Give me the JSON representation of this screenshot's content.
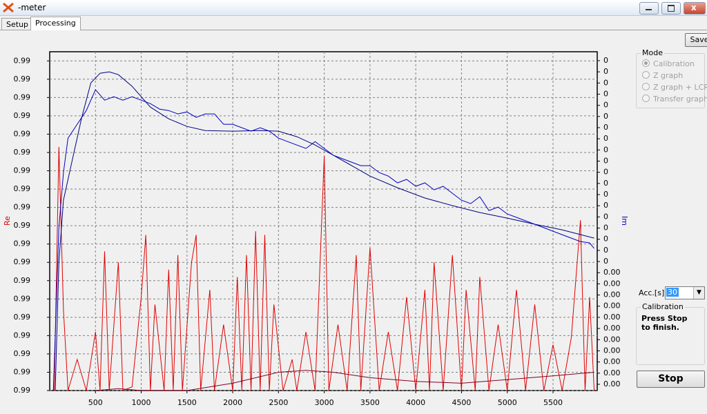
{
  "window": {
    "title": "-meter"
  },
  "tabs": [
    "Setup",
    "Processing"
  ],
  "buttons": {
    "save": "Save",
    "stop": "Stop"
  },
  "mode": {
    "title": "Mode",
    "options": [
      "Calibration",
      "Z graph",
      "Z graph + LCR",
      "Transfer graph"
    ],
    "selected": 0
  },
  "acc": {
    "label": "Acc.[s]",
    "value": "30"
  },
  "status": {
    "title": "Calibration",
    "message": "Press Stop to finish."
  },
  "chart_data": {
    "type": "line",
    "ylabel": "Re",
    "y2label": "Im",
    "grid": true,
    "xlim": [
      0,
      5983
    ],
    "xticks": [
      500,
      1000,
      1500,
      2000,
      2500,
      3000,
      3500,
      4000,
      4500,
      5000,
      5500
    ],
    "ylim": [
      0.9891,
      0.99095
    ],
    "yticks": [
      {
        "value": 0.9891,
        "label": "0.99"
      },
      {
        "value": 0.9892,
        "label": "0.99"
      },
      {
        "value": 0.9893,
        "label": "0.99"
      },
      {
        "value": 0.9894,
        "label": "0.99"
      },
      {
        "value": 0.9895,
        "label": "0.99"
      },
      {
        "value": 0.9896,
        "label": "0.99"
      },
      {
        "value": 0.9897,
        "label": "0.99"
      },
      {
        "value": 0.9898,
        "label": "0.99"
      },
      {
        "value": 0.9899,
        "label": "0.99"
      },
      {
        "value": 0.99,
        "label": "0.99"
      },
      {
        "value": 0.9901,
        "label": "0.99"
      },
      {
        "value": 0.9902,
        "label": "0.99"
      },
      {
        "value": 0.9903,
        "label": "0.99"
      },
      {
        "value": 0.9904,
        "label": "0.99"
      },
      {
        "value": 0.9905,
        "label": "0.99"
      },
      {
        "value": 0.9906,
        "label": "0.99"
      },
      {
        "value": 0.9907,
        "label": "0.99"
      },
      {
        "value": 0.9908,
        "label": "0.99"
      },
      {
        "value": 0.9909,
        "label": "0.99"
      }
    ],
    "y2lim": [
      -0.00056,
      0.0298
    ],
    "y2ticks": [
      {
        "value": 0.0,
        "label": "0.00"
      },
      {
        "value": 0.001,
        "label": "0.00"
      },
      {
        "value": 0.002,
        "label": "0.00"
      },
      {
        "value": 0.003,
        "label": "0.00"
      },
      {
        "value": 0.004,
        "label": "0.00"
      },
      {
        "value": 0.005,
        "label": "0.00"
      },
      {
        "value": 0.006,
        "label": "0.00"
      },
      {
        "value": 0.007,
        "label": "0.00"
      },
      {
        "value": 0.008,
        "label": "0.00"
      },
      {
        "value": 0.009,
        "label": "0.00"
      },
      {
        "value": 0.01,
        "label": "0.00"
      },
      {
        "value": 0.011,
        "label": "0"
      },
      {
        "value": 0.012,
        "label": "0"
      },
      {
        "value": 0.013,
        "label": "0"
      },
      {
        "value": 0.014,
        "label": "0"
      },
      {
        "value": 0.015,
        "label": "0"
      },
      {
        "value": 0.016,
        "label": "0"
      },
      {
        "value": 0.017,
        "label": "0"
      },
      {
        "value": 0.018,
        "label": "0"
      },
      {
        "value": 0.019,
        "label": "0"
      },
      {
        "value": 0.02,
        "label": "0"
      },
      {
        "value": 0.021,
        "label": "0"
      },
      {
        "value": 0.022,
        "label": "0"
      },
      {
        "value": 0.023,
        "label": "0"
      },
      {
        "value": 0.024,
        "label": "0"
      },
      {
        "value": 0.025,
        "label": "0"
      },
      {
        "value": 0.026,
        "label": "0"
      },
      {
        "value": 0.027,
        "label": "0"
      },
      {
        "value": 0.028,
        "label": "0"
      },
      {
        "value": 0.029,
        "label": "0"
      }
    ],
    "series": [
      {
        "color": "#e00000",
        "axis": "y",
        "x": [
          50,
          100,
          150,
          200,
          300,
          400,
          500,
          550,
          600,
          650,
          750,
          800,
          900,
          1000,
          1050,
          1100,
          1150,
          1250,
          1300,
          1350,
          1400,
          1450,
          1550,
          1600,
          1650,
          1750,
          1800,
          1900,
          2000,
          2050,
          2100,
          2150,
          2200,
          2250,
          2300,
          2350,
          2400,
          2450,
          2550,
          2650,
          2700,
          2800,
          2900,
          3000,
          3050,
          3150,
          3250,
          3350,
          3400,
          3500,
          3600,
          3700,
          3800,
          3900,
          4000,
          4100,
          4150,
          4200,
          4300,
          4400,
          4500,
          4550,
          4650,
          4700,
          4800,
          4900,
          5000,
          5100,
          5200,
          5300,
          5400,
          5500,
          5600,
          5700,
          5800,
          5850,
          5900,
          5950
        ],
        "values": [
          0.9891,
          0.99043,
          0.98954,
          0.9891,
          0.98927,
          0.9891,
          0.98942,
          0.9891,
          0.98986,
          0.9891,
          0.9898,
          0.9891,
          0.98912,
          0.98961,
          0.98995,
          0.9891,
          0.98957,
          0.9891,
          0.98976,
          0.9891,
          0.98984,
          0.9891,
          0.9898,
          0.98995,
          0.9891,
          0.98965,
          0.9891,
          0.98946,
          0.9891,
          0.98972,
          0.9891,
          0.98984,
          0.9891,
          0.98997,
          0.9891,
          0.98995,
          0.9891,
          0.98957,
          0.9891,
          0.98927,
          0.9891,
          0.98942,
          0.9891,
          0.99038,
          0.9891,
          0.98946,
          0.9891,
          0.98984,
          0.9891,
          0.98988,
          0.9891,
          0.98942,
          0.9891,
          0.98961,
          0.9891,
          0.98965,
          0.9891,
          0.9898,
          0.9891,
          0.98984,
          0.9891,
          0.98965,
          0.9891,
          0.98972,
          0.9891,
          0.98946,
          0.9891,
          0.98965,
          0.9891,
          0.98957,
          0.9891,
          0.98935,
          0.9891,
          0.98939,
          0.99003,
          0.9891,
          0.98961,
          0.9891
        ]
      },
      {
        "color": "#800020",
        "axis": "y",
        "x": [
          500,
          750,
          1000,
          1500,
          2000,
          2500,
          2800,
          3100,
          3500,
          4000,
          4500,
          5000,
          5500,
          5950
        ],
        "values": [
          0.9891,
          0.98911,
          0.9891,
          0.9891,
          0.98914,
          0.9892,
          0.98921,
          0.9892,
          0.98917,
          0.98915,
          0.98914,
          0.98916,
          0.98918,
          0.9892
        ]
      },
      {
        "color": "#000080",
        "axis": "y2",
        "x": [
          60,
          100,
          150,
          250,
          350,
          450,
          550,
          650,
          750,
          900,
          1100,
          1300,
          1500,
          1700,
          2000,
          2300,
          2500,
          2700,
          2900,
          3100,
          3300,
          3500,
          3800,
          4100,
          4400,
          4700,
          5000,
          5300,
          5600,
          5950
        ],
        "values": [
          -0.00056,
          0.01094,
          0.0165,
          0.02021,
          0.02392,
          0.02701,
          0.02787,
          0.028,
          0.02775,
          0.0267,
          0.02484,
          0.02379,
          0.02311,
          0.02274,
          0.02268,
          0.02274,
          0.02268,
          0.02219,
          0.02144,
          0.02052,
          0.01959,
          0.01866,
          0.01761,
          0.01669,
          0.01601,
          0.01539,
          0.01489,
          0.01434,
          0.01384,
          0.0131
        ]
      },
      {
        "color": "#0000c0",
        "axis": "y2",
        "x": [
          40,
          100,
          150,
          200,
          300,
          400,
          500,
          600,
          700,
          800,
          900,
          1000,
          1100,
          1200,
          1300,
          1400,
          1500,
          1600,
          1700,
          1800,
          1900,
          2000,
          2100,
          2200,
          2300,
          2400,
          2500,
          2600,
          2700,
          2800,
          2900,
          3000,
          3100,
          3200,
          3300,
          3400,
          3500,
          3600,
          3700,
          3800,
          3900,
          4000,
          4100,
          4200,
          4300,
          4400,
          4500,
          4600,
          4700,
          4800,
          4900,
          5000,
          5100,
          5200,
          5300,
          5400,
          5500,
          5600,
          5700,
          5800,
          5900,
          5950
        ],
        "values": [
          -0.00056,
          0.01403,
          0.01897,
          0.02206,
          0.0233,
          0.02453,
          0.02639,
          0.02546,
          0.02577,
          0.02546,
          0.02577,
          0.02546,
          0.02515,
          0.02466,
          0.02453,
          0.02423,
          0.02441,
          0.02392,
          0.02423,
          0.02423,
          0.0233,
          0.0233,
          0.02299,
          0.02268,
          0.02299,
          0.02268,
          0.02206,
          0.02175,
          0.02144,
          0.02114,
          0.02175,
          0.02114,
          0.02052,
          0.02021,
          0.0199,
          0.01959,
          0.01959,
          0.01897,
          0.01866,
          0.01805,
          0.01836,
          0.01774,
          0.01805,
          0.01743,
          0.01774,
          0.01712,
          0.0165,
          0.01619,
          0.01681,
          0.01557,
          0.01588,
          0.01526,
          0.01496,
          0.01465,
          0.01434,
          0.01403,
          0.01372,
          0.01341,
          0.0131,
          0.01279,
          0.01267,
          0.01217
        ]
      }
    ]
  }
}
